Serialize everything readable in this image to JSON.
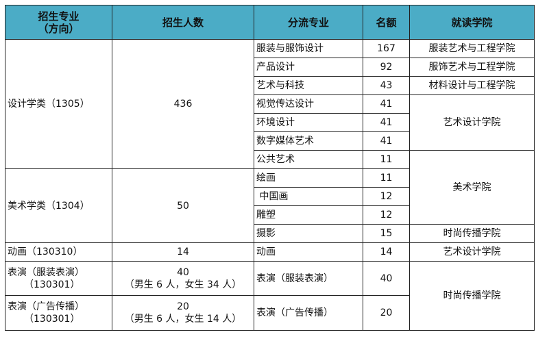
{
  "header": {
    "major": "招生专业",
    "major_sub": "（方向）",
    "enroll": "招生人数",
    "split": "分流专业",
    "quota": "名额",
    "college": "就读学院"
  },
  "colors": {
    "header_bg": "#4bacc6"
  },
  "groups": {
    "design": {
      "name": "设计学类（1305）",
      "count": "436"
    },
    "fineart": {
      "name": "美术学类（1304）",
      "count": "50"
    },
    "animation": {
      "name": "动画（130310）",
      "count": "14"
    },
    "fashion_show": {
      "name": "表演（服装表演）",
      "code": "（130301）",
      "count": "40",
      "detail": "（男生 6 人，女生 34 人）"
    },
    "ad_show": {
      "name": "表演（广告传播）",
      "code": "（130301）",
      "count": "20",
      "detail": "（男生 6 人，女生 14 人）"
    }
  },
  "rows": [
    {
      "split": "服装与服饰设计",
      "quota": "167"
    },
    {
      "split": "产品设计",
      "quota": "92"
    },
    {
      "split": "艺术与科技",
      "quota": "43"
    },
    {
      "split": "视觉传达设计",
      "quota": "41"
    },
    {
      "split": "环境设计",
      "quota": "41"
    },
    {
      "split": "数字媒体艺术",
      "quota": "41"
    },
    {
      "split": "公共艺术",
      "quota": "11"
    },
    {
      "split": "绘画",
      "quota": "11"
    },
    {
      "split": " 中国画",
      "quota": "12"
    },
    {
      "split": "雕塑",
      "quota": "12"
    },
    {
      "split": "摄影",
      "quota": "15"
    },
    {
      "split": "动画",
      "quota": "14"
    },
    {
      "split": "表演（服装表演）",
      "quota": "40"
    },
    {
      "split": "表演（广告传播）",
      "quota": "20"
    }
  ],
  "colleges": [
    "服装艺术与工程学院",
    "服饰艺术与工程学院",
    "材料设计与工程学院",
    "艺术设计学院",
    "美术学院",
    "时尚传播学院",
    "艺术设计学院",
    "时尚传播学院"
  ]
}
